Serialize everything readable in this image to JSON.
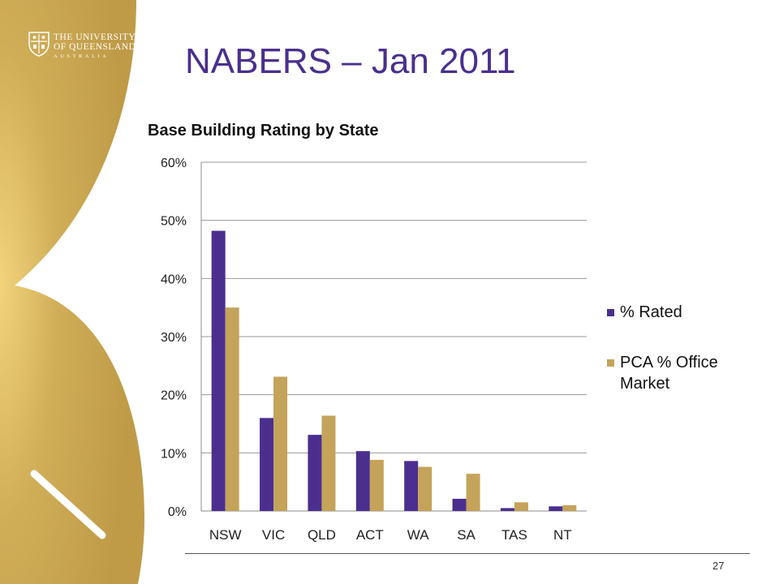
{
  "slide": {
    "title": "NABERS – Jan 2011",
    "page_number": "27"
  },
  "logo": {
    "line1": "THE UNIVERSITY",
    "line2": "OF QUEENSLAND",
    "line3": "AUSTRALIA"
  },
  "colors": {
    "gold": "#c8a450",
    "purple": "#4a2f8e",
    "series_tan": "#c4a35a"
  },
  "chart_data": {
    "type": "bar",
    "title": "Base Building Rating by State",
    "xlabel": "",
    "ylabel": "",
    "categories": [
      "NSW",
      "VIC",
      "QLD",
      "ACT",
      "WA",
      "SA",
      "TAS",
      "NT"
    ],
    "y_ticks": [
      "0%",
      "10%",
      "20%",
      "30%",
      "40%",
      "50%",
      "60%"
    ],
    "ylim": [
      0,
      60
    ],
    "grid": true,
    "legend_position": "right",
    "series": [
      {
        "name": "% Rated",
        "color": "#4a2f8e",
        "values": [
          48.2,
          16.0,
          13.1,
          10.3,
          8.6,
          2.1,
          0.5,
          0.8
        ]
      },
      {
        "name": "PCA % Office Market",
        "color": "#c4a35a",
        "values": [
          35.0,
          23.1,
          16.4,
          8.8,
          7.6,
          6.4,
          1.5,
          1.0
        ]
      }
    ]
  }
}
